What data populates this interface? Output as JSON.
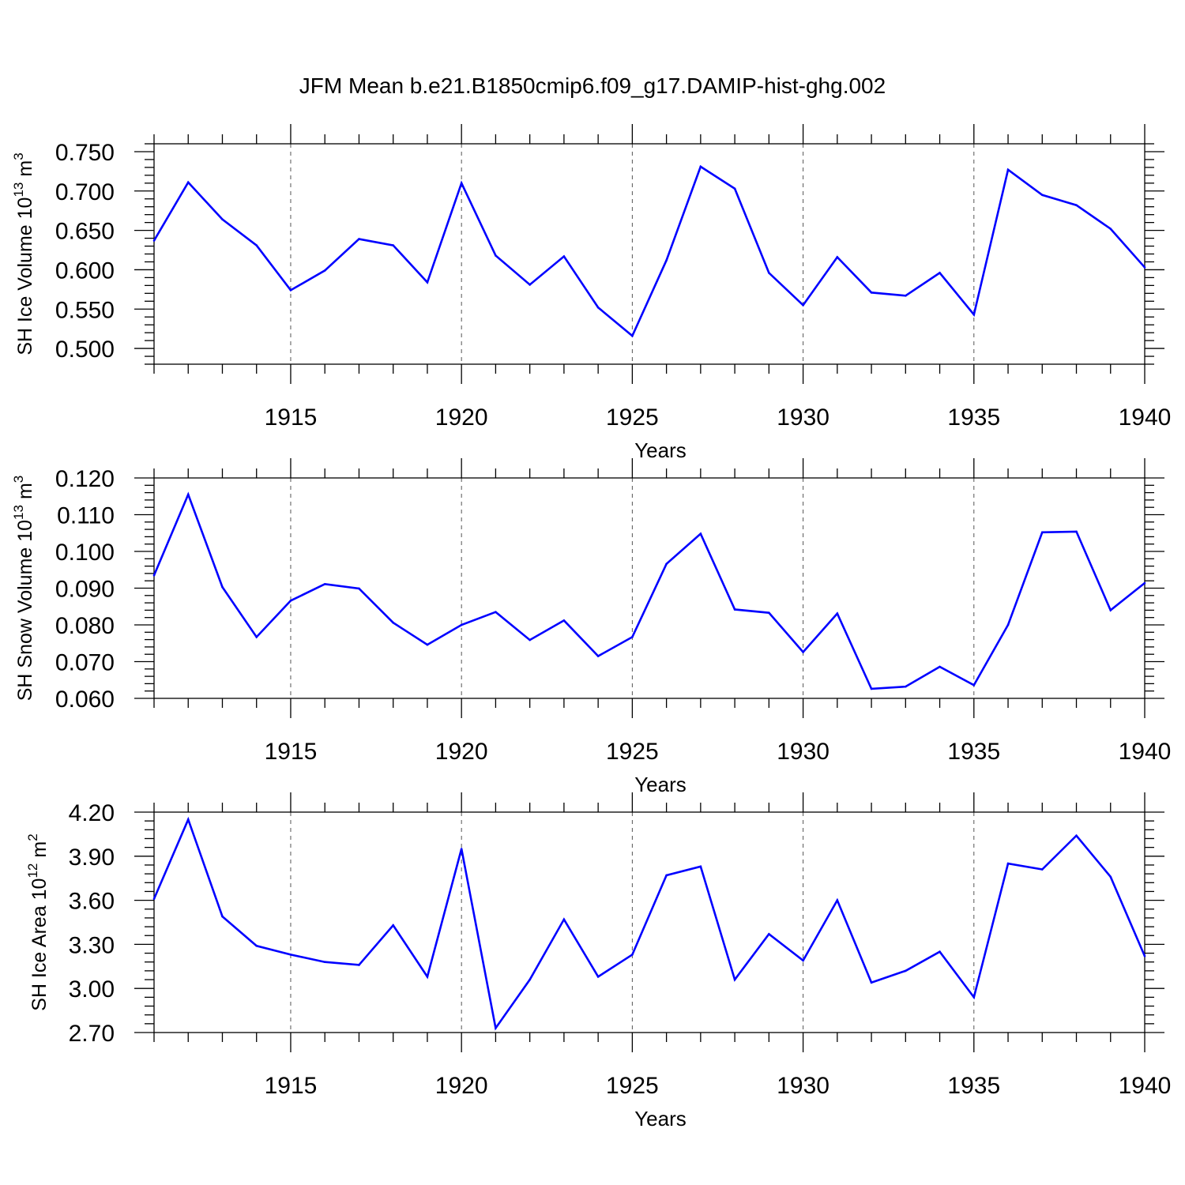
{
  "figure": {
    "title": "JFM Mean b.e21.B1850cmip6.f09_g17.DAMIP-hist-ghg.002",
    "line_color": "#0000ff"
  },
  "chart_data": [
    {
      "type": "line",
      "title": "",
      "xlabel": "Years",
      "ylabel": "SH Ice Volume 10",
      "ylabel_exp": "13",
      "ylabel_unit": "m",
      "ylabel_unit_exp": "3",
      "xlim": [
        1911,
        1940
      ],
      "ylim": [
        0.48,
        0.76
      ],
      "xticks": [
        1915,
        1920,
        1925,
        1930,
        1935,
        1940
      ],
      "yticks": [
        0.5,
        0.55,
        0.6,
        0.65,
        0.7,
        0.75
      ],
      "ytick_labels": [
        "0.500",
        "0.550",
        "0.600",
        "0.650",
        "0.700",
        "0.750"
      ],
      "grid": "vertical dashed at labeled years",
      "x": [
        1911,
        1912,
        1913,
        1914,
        1915,
        1916,
        1917,
        1918,
        1919,
        1920,
        1921,
        1922,
        1923,
        1924,
        1925,
        1926,
        1927,
        1928,
        1929,
        1930,
        1931,
        1932,
        1933,
        1934,
        1935,
        1936,
        1937,
        1938,
        1939,
        1940
      ],
      "values": [
        0.637,
        0.711,
        0.664,
        0.631,
        0.574,
        0.599,
        0.639,
        0.631,
        0.584,
        0.71,
        0.618,
        0.581,
        0.617,
        0.552,
        0.516,
        0.612,
        0.731,
        0.703,
        0.596,
        0.555,
        0.616,
        0.571,
        0.567,
        0.596,
        0.543,
        0.727,
        0.695,
        0.682,
        0.652,
        0.603
      ]
    },
    {
      "type": "line",
      "title": "",
      "xlabel": "Years",
      "ylabel": "SH Snow Volume 10",
      "ylabel_exp": "13",
      "ylabel_unit": "m",
      "ylabel_unit_exp": "3",
      "xlim": [
        1911,
        1940
      ],
      "ylim": [
        0.06,
        0.12
      ],
      "xticks": [
        1915,
        1920,
        1925,
        1930,
        1935,
        1940
      ],
      "yticks": [
        0.06,
        0.07,
        0.08,
        0.09,
        0.1,
        0.11,
        0.12
      ],
      "ytick_labels": [
        "0.060",
        "0.070",
        "0.080",
        "0.090",
        "0.100",
        "0.110",
        "0.120"
      ],
      "grid": "vertical dashed at labeled years",
      "x": [
        1911,
        1912,
        1913,
        1914,
        1915,
        1916,
        1917,
        1918,
        1919,
        1920,
        1921,
        1922,
        1923,
        1924,
        1925,
        1926,
        1927,
        1928,
        1929,
        1930,
        1931,
        1932,
        1933,
        1934,
        1935,
        1936,
        1937,
        1938,
        1939,
        1940
      ],
      "values": [
        0.0935,
        0.1155,
        0.0903,
        0.0767,
        0.0866,
        0.0911,
        0.0899,
        0.0806,
        0.0746,
        0.08,
        0.0835,
        0.0759,
        0.0812,
        0.0715,
        0.0767,
        0.0966,
        0.1048,
        0.0842,
        0.0833,
        0.0726,
        0.0831,
        0.0626,
        0.0632,
        0.0686,
        0.0636,
        0.08,
        0.1052,
        0.1054,
        0.084,
        0.0914
      ]
    },
    {
      "type": "line",
      "title": "",
      "xlabel": "Years",
      "ylabel": "SH Ice Area 10",
      "ylabel_exp": "12",
      "ylabel_unit": "m",
      "ylabel_unit_exp": "2",
      "xlim": [
        1911,
        1940
      ],
      "ylim": [
        2.7,
        4.2
      ],
      "xticks": [
        1915,
        1920,
        1925,
        1930,
        1935,
        1940
      ],
      "yticks": [
        2.7,
        3.0,
        3.3,
        3.6,
        3.9,
        4.2
      ],
      "ytick_labels": [
        "2.70",
        "3.00",
        "3.30",
        "3.60",
        "3.90",
        "4.20"
      ],
      "grid": "vertical dashed at labeled years",
      "x": [
        1911,
        1912,
        1913,
        1914,
        1915,
        1916,
        1917,
        1918,
        1919,
        1920,
        1921,
        1922,
        1923,
        1924,
        1925,
        1926,
        1927,
        1928,
        1929,
        1930,
        1931,
        1932,
        1933,
        1934,
        1935,
        1936,
        1937,
        1938,
        1939,
        1940
      ],
      "values": [
        3.61,
        4.15,
        3.49,
        3.29,
        3.23,
        3.18,
        3.16,
        3.43,
        3.08,
        3.95,
        2.73,
        3.06,
        3.47,
        3.08,
        3.23,
        3.77,
        3.83,
        3.06,
        3.37,
        3.19,
        3.6,
        3.04,
        3.12,
        3.25,
        2.94,
        3.85,
        3.81,
        4.04,
        3.76,
        3.22
      ]
    }
  ]
}
